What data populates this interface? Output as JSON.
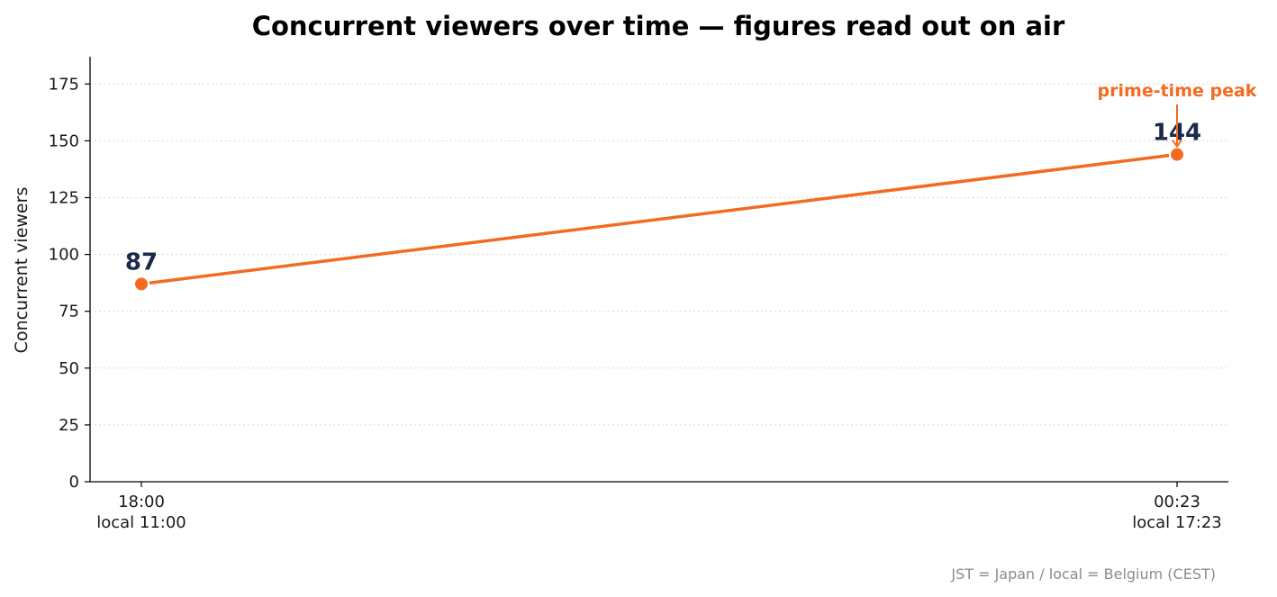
{
  "chart_data": {
    "type": "line",
    "title": "Concurrent viewers over time — figures read out on air",
    "ylabel": "Concurrent viewers",
    "xlabel": "",
    "ylim": [
      0,
      187
    ],
    "yticks": [
      0,
      25,
      50,
      75,
      100,
      125,
      150,
      175
    ],
    "grid": "horizontal dotted",
    "x": [
      "18:00",
      "00:23"
    ],
    "x_secondary": [
      "local 11:00",
      "local 17:23"
    ],
    "values": [
      87,
      144
    ],
    "data_labels": [
      "87",
      "144"
    ],
    "annotation": {
      "text": "prime-time peak",
      "point_index": 1
    },
    "footnote": "JST = Japan / local = Belgium (CEST)",
    "colors": {
      "line": "#f26b21",
      "data_label": "#1b2a4a",
      "annotation": "#f26b21"
    }
  }
}
